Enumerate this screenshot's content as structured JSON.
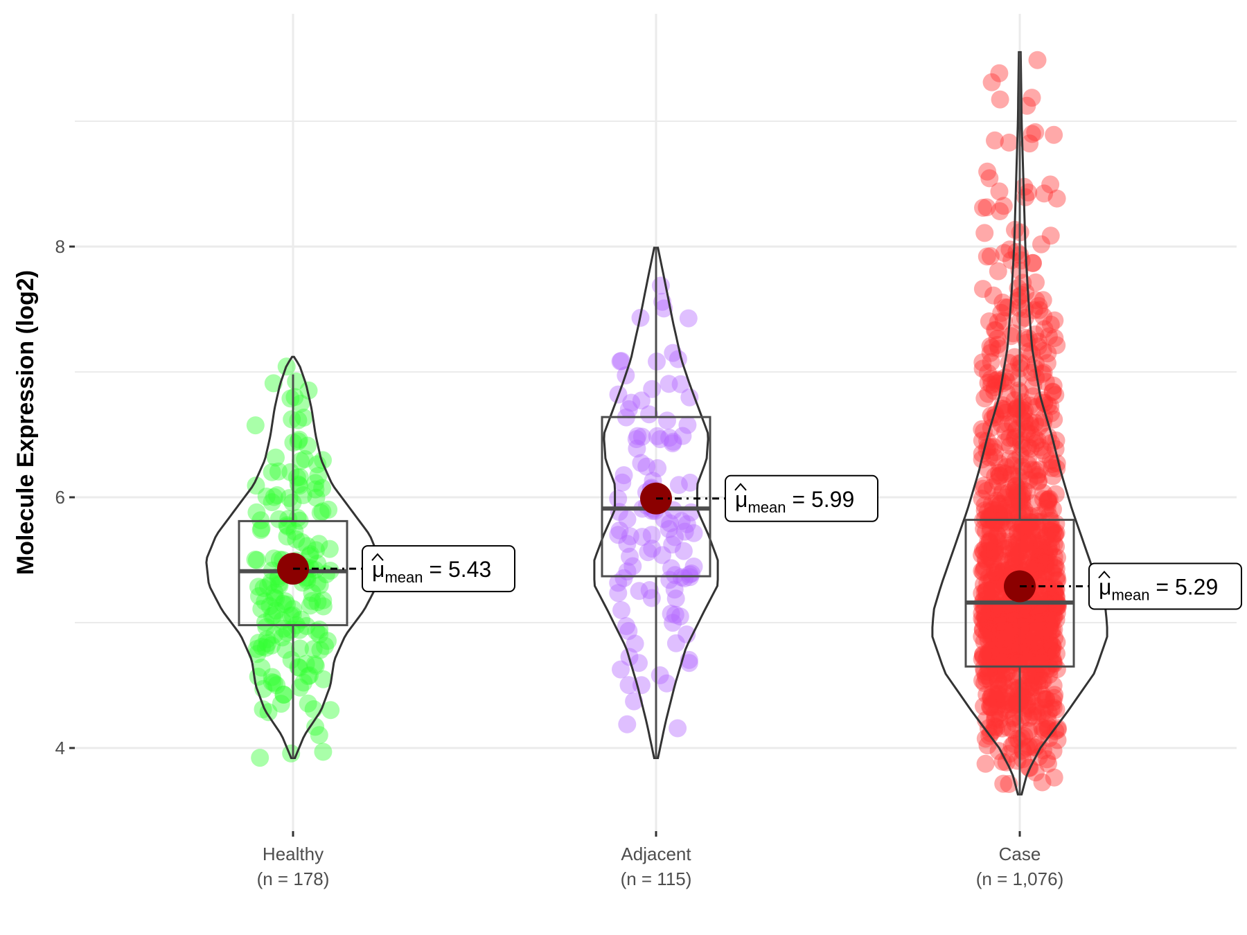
{
  "chart_data": {
    "type": "violin",
    "title": "",
    "ylabel": "Molecule Expression (log2)",
    "xlabel": "",
    "ylim": [
      3.4,
      9.85
    ],
    "yticks": [
      4,
      6,
      8
    ],
    "grid": true,
    "mean_label_prefix": "μ",
    "mean_label_subscript": "mean",
    "groups": [
      {
        "name": "Healthy",
        "n_label": "(n = 178)",
        "n": 178,
        "color": "#33ff33",
        "mean": 5.43,
        "mean_text": "5.43",
        "box": {
          "q1": 4.98,
          "median": 5.41,
          "q3": 5.81,
          "whisker_low": 3.92,
          "whisker_high": 6.98
        },
        "violin_range": [
          3.92,
          7.12
        ],
        "density": [
          [
            3.92,
            0.02
          ],
          [
            4.1,
            0.12
          ],
          [
            4.3,
            0.3
          ],
          [
            4.5,
            0.4
          ],
          [
            4.7,
            0.44
          ],
          [
            4.9,
            0.56
          ],
          [
            5.1,
            0.76
          ],
          [
            5.3,
            0.9
          ],
          [
            5.5,
            0.93
          ],
          [
            5.7,
            0.82
          ],
          [
            5.9,
            0.62
          ],
          [
            6.1,
            0.42
          ],
          [
            6.3,
            0.3
          ],
          [
            6.5,
            0.24
          ],
          [
            6.7,
            0.2
          ],
          [
            6.9,
            0.14
          ],
          [
            7.05,
            0.07
          ],
          [
            7.12,
            0.01
          ]
        ]
      },
      {
        "name": "Adjacent",
        "n_label": "(n = 115)",
        "n": 115,
        "color": "#b266ff",
        "mean": 5.99,
        "mean_text": "5.99",
        "box": {
          "q1": 5.37,
          "median": 5.91,
          "q3": 6.64,
          "whisker_low": 3.92,
          "whisker_high": 7.99
        },
        "violin_range": [
          3.92,
          7.99
        ],
        "density": [
          [
            3.92,
            0.02
          ],
          [
            4.2,
            0.1
          ],
          [
            4.5,
            0.2
          ],
          [
            4.8,
            0.32
          ],
          [
            5.1,
            0.52
          ],
          [
            5.3,
            0.66
          ],
          [
            5.5,
            0.66
          ],
          [
            5.7,
            0.56
          ],
          [
            5.9,
            0.44
          ],
          [
            6.1,
            0.44
          ],
          [
            6.3,
            0.54
          ],
          [
            6.5,
            0.56
          ],
          [
            6.7,
            0.46
          ],
          [
            6.9,
            0.36
          ],
          [
            7.1,
            0.27
          ],
          [
            7.4,
            0.18
          ],
          [
            7.7,
            0.1
          ],
          [
            7.99,
            0.02
          ]
        ]
      },
      {
        "name": "Case",
        "n_label": "(n = 1,076)",
        "n": 1076,
        "color": "#ff3333",
        "mean": 5.29,
        "mean_text": "5.29",
        "box": {
          "q1": 4.65,
          "median": 5.16,
          "q3": 5.82,
          "whisker_low": 3.63,
          "whisker_high": 9.55
        },
        "violin_range": [
          3.63,
          9.55
        ],
        "density": [
          [
            3.63,
            0.02
          ],
          [
            3.8,
            0.08
          ],
          [
            4.0,
            0.22
          ],
          [
            4.3,
            0.52
          ],
          [
            4.6,
            0.8
          ],
          [
            4.9,
            0.94
          ],
          [
            5.1,
            0.92
          ],
          [
            5.3,
            0.84
          ],
          [
            5.6,
            0.7
          ],
          [
            5.9,
            0.56
          ],
          [
            6.2,
            0.44
          ],
          [
            6.5,
            0.34
          ],
          [
            6.8,
            0.22
          ],
          [
            7.2,
            0.13
          ],
          [
            7.6,
            0.09
          ],
          [
            8.0,
            0.06
          ],
          [
            8.5,
            0.04
          ],
          [
            9.0,
            0.02
          ],
          [
            9.55,
            0.01
          ]
        ]
      }
    ]
  }
}
